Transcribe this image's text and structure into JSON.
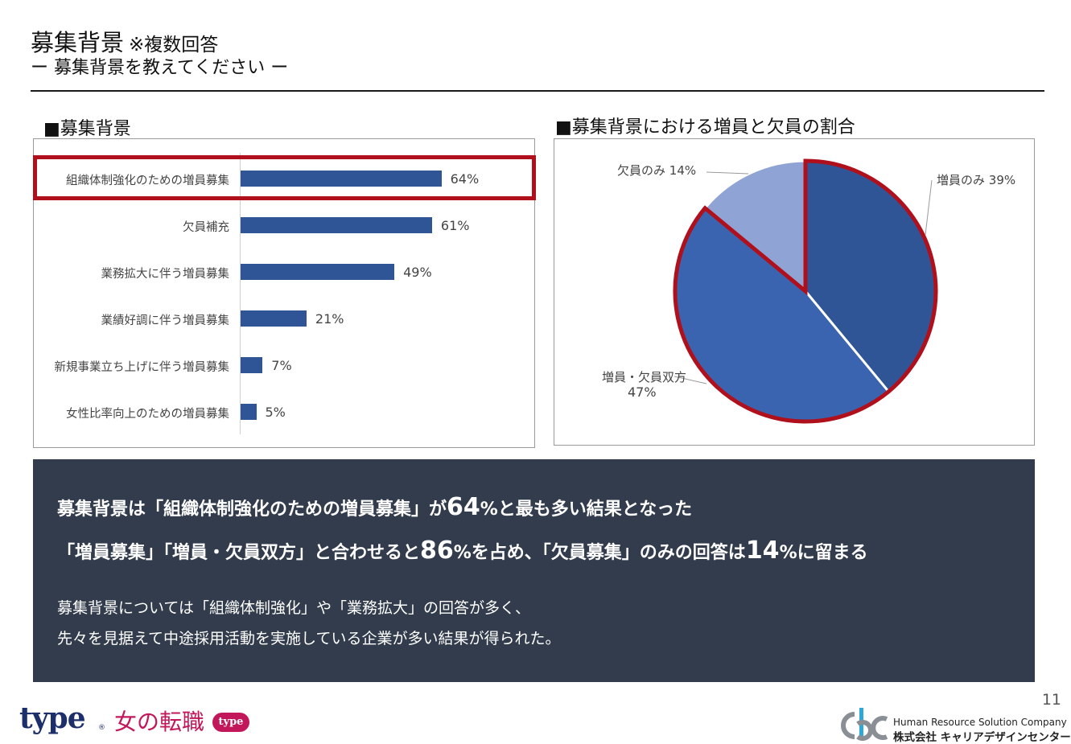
{
  "header": {
    "title": "募集背景",
    "title_note": "※複数回答",
    "subtitle": "ー 募集背景を教えてください ー"
  },
  "bar_panel": {
    "heading": "■募集背景"
  },
  "pie_panel": {
    "heading": "■募集背景における増員と欠員の割合"
  },
  "chart_data": [
    {
      "type": "bar",
      "orientation": "horizontal",
      "title": "■募集背景",
      "categories": [
        "組織体制強化のための増員募集",
        "欠員補充",
        "業務拡大に伴う増員募集",
        "業績好調に伴う増員募集",
        "新規事業立ち上げに伴う増員募集",
        "女性比率向上のための増員募集"
      ],
      "values": [
        64,
        61,
        49,
        21,
        7,
        5
      ],
      "value_labels": [
        "64%",
        "61%",
        "49%",
        "21%",
        "7%",
        "5%"
      ],
      "unit": "%",
      "xlim": [
        0,
        100
      ],
      "grid": false,
      "highlighted_category": "組織体制強化のための増員募集",
      "bar_color": "#2f5597",
      "highlight_color": "#b0101c"
    },
    {
      "type": "pie",
      "title": "■募集背景における増員と欠員の割合",
      "slices": [
        {
          "label": "増員のみ",
          "value": 39,
          "value_label": "39%",
          "color": "#2f5597"
        },
        {
          "label": "増員・欠員双方",
          "value": 47,
          "value_label": "47%",
          "color": "#3a64b0"
        },
        {
          "label": "欠員のみ",
          "value": 14,
          "value_label": "14%",
          "color": "#8fa4d4"
        }
      ],
      "highlighted_slices": [
        "増員のみ",
        "増員・欠員双方"
      ],
      "highlight_color": "#b0101c"
    }
  ],
  "summary": {
    "line1": {
      "a": "募集背景は「組織体制強化のための増員募集」が",
      "num": "64",
      "b": "%と最も多い結果となった"
    },
    "line2": {
      "a": "「増員募集」「増員・欠員双方」と合わせると",
      "num1": "86",
      "b": "%を占め、「欠員募集」のみの回答は",
      "num2": "14",
      "c": "%に留まる"
    },
    "line3": "募集背景については「組織体制強化」や「業務拡大」の回答が多く、",
    "line4": "先々を見据えて中途採用活動を実施している企業が多い結果が得られた。"
  },
  "footer": {
    "page_number": "11",
    "logo_type": "type",
    "logo_type_mark": "®",
    "logo_onna": "女の転職",
    "logo_onna_badge": "type",
    "company_en": "Human Resource Solution Company",
    "company_jp": "株式会社 キャリアデザインセンター"
  }
}
